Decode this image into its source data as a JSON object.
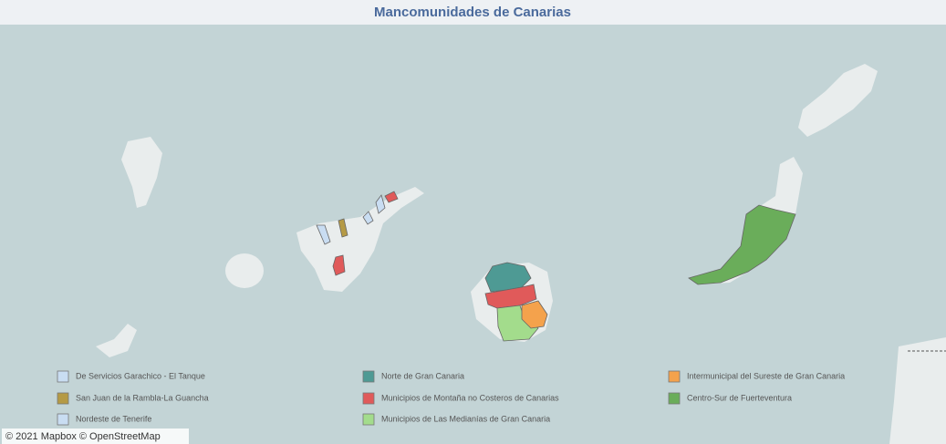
{
  "title": "Mancomunidades de Canarias",
  "legend": [
    {
      "name": "De Servicios Garachico - El Tanque",
      "color": "#c9ddf2"
    },
    {
      "name": "San Juan de la Rambla-La Guancha",
      "color": "#b59a45"
    },
    {
      "name": "Nordeste de Tenerife",
      "color": "#c9ddf2"
    },
    {
      "name": "Norte de Gran Canaria",
      "color": "#4e9a94"
    },
    {
      "name": "Municipios de Montaña no Costeros de Canarias",
      "color": "#e05a5a"
    },
    {
      "name": "Municipios de Las Medianías de Gran Canaria",
      "color": "#a3dc8c"
    },
    {
      "name": "Intermunicipal del Sureste de Gran Canaria",
      "color": "#f4a24c"
    },
    {
      "name": "Centro-Sur de Fuerteventura",
      "color": "#6aad5a"
    }
  ],
  "attribution": "© 2021 Mapbox © OpenStreetMap"
}
